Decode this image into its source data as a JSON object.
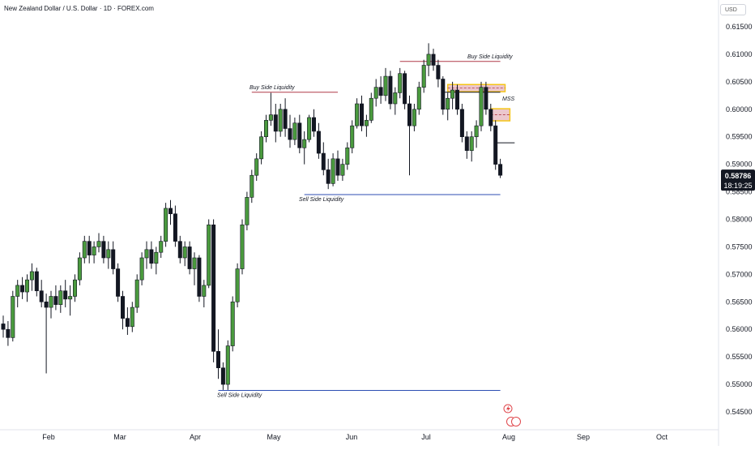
{
  "title": "New Zealand Dollar / U.S. Dollar · 1D · FOREX.com",
  "currency": "USD",
  "last_price": "0.58786",
  "countdown": "18:19:25",
  "colors": {
    "up": "#4a9a3e",
    "down": "#131722",
    "liquidity_high": "#b03a48",
    "liquidity_low": "#2c4db3",
    "zone_border": "#f5c518",
    "zone_fill": "#e7b9c1"
  },
  "annotations": {
    "bsl_high": "Buy Side Liquidity",
    "bsl_mid": "Buy Side Liquidity",
    "ssl_mid": "Sell Side Liquidity",
    "ssl_low": "Sell Side Liquidity",
    "mss": "MSS"
  },
  "chart_data": {
    "type": "candlestick",
    "title": "New Zealand Dollar / U.S. Dollar · 1D · FOREX.com",
    "y_ticks": [
      "0.61500",
      "0.61000",
      "0.60500",
      "0.60000",
      "0.59500",
      "0.59000",
      "0.58500",
      "0.58000",
      "0.57500",
      "0.57000",
      "0.56500",
      "0.56000",
      "0.55500",
      "0.55000",
      "0.54500"
    ],
    "ylim": [
      0.5438,
      0.6165
    ],
    "x_ticks": [
      "Feb",
      "Mar",
      "Apr",
      "May",
      "Jun",
      "Jul",
      "Aug",
      "Sep",
      "Oct"
    ],
    "candles": [
      [
        0.561,
        0.5625,
        0.5585,
        0.56
      ],
      [
        0.56,
        0.5615,
        0.557,
        0.5585
      ],
      [
        0.5585,
        0.567,
        0.5578,
        0.566
      ],
      [
        0.566,
        0.569,
        0.564,
        0.568
      ],
      [
        0.568,
        0.5695,
        0.5655,
        0.5668
      ],
      [
        0.5668,
        0.57,
        0.565,
        0.569
      ],
      [
        0.569,
        0.572,
        0.567,
        0.5705
      ],
      [
        0.5705,
        0.5712,
        0.566,
        0.567
      ],
      [
        0.567,
        0.569,
        0.564,
        0.565
      ],
      [
        0.565,
        0.5665,
        0.552,
        0.564
      ],
      [
        0.564,
        0.567,
        0.562,
        0.566
      ],
      [
        0.566,
        0.568,
        0.5635,
        0.5645
      ],
      [
        0.5645,
        0.568,
        0.563,
        0.567
      ],
      [
        0.567,
        0.569,
        0.564,
        0.5655
      ],
      [
        0.5655,
        0.568,
        0.5625,
        0.566
      ],
      [
        0.566,
        0.57,
        0.565,
        0.569
      ],
      [
        0.569,
        0.574,
        0.568,
        0.573
      ],
      [
        0.573,
        0.577,
        0.572,
        0.576
      ],
      [
        0.576,
        0.577,
        0.572,
        0.5735
      ],
      [
        0.5735,
        0.576,
        0.572,
        0.575
      ],
      [
        0.575,
        0.5775,
        0.574,
        0.576
      ],
      [
        0.576,
        0.577,
        0.572,
        0.573
      ],
      [
        0.573,
        0.576,
        0.571,
        0.5745
      ],
      [
        0.5745,
        0.576,
        0.57,
        0.571
      ],
      [
        0.571,
        0.572,
        0.565,
        0.566
      ],
      [
        0.566,
        0.567,
        0.56,
        0.562
      ],
      [
        0.562,
        0.564,
        0.559,
        0.5605
      ],
      [
        0.5605,
        0.565,
        0.5595,
        0.564
      ],
      [
        0.564,
        0.57,
        0.563,
        0.569
      ],
      [
        0.569,
        0.574,
        0.568,
        0.573
      ],
      [
        0.573,
        0.576,
        0.571,
        0.5745
      ],
      [
        0.5745,
        0.576,
        0.571,
        0.572
      ],
      [
        0.572,
        0.575,
        0.57,
        0.574
      ],
      [
        0.574,
        0.577,
        0.573,
        0.576
      ],
      [
        0.576,
        0.583,
        0.575,
        0.582
      ],
      [
        0.582,
        0.5835,
        0.579,
        0.581
      ],
      [
        0.581,
        0.5825,
        0.575,
        0.576
      ],
      [
        0.576,
        0.577,
        0.572,
        0.573
      ],
      [
        0.573,
        0.576,
        0.5715,
        0.575
      ],
      [
        0.575,
        0.576,
        0.57,
        0.571
      ],
      [
        0.571,
        0.574,
        0.568,
        0.573
      ],
      [
        0.573,
        0.5735,
        0.565,
        0.566
      ],
      [
        0.566,
        0.569,
        0.564,
        0.568
      ],
      [
        0.568,
        0.58,
        0.5675,
        0.579
      ],
      [
        0.579,
        0.58,
        0.554,
        0.556
      ],
      [
        0.556,
        0.56,
        0.551,
        0.553
      ],
      [
        0.553,
        0.554,
        0.549,
        0.55
      ],
      [
        0.55,
        0.558,
        0.549,
        0.557
      ],
      [
        0.557,
        0.566,
        0.556,
        0.565
      ],
      [
        0.565,
        0.572,
        0.564,
        0.571
      ],
      [
        0.571,
        0.58,
        0.57,
        0.579
      ],
      [
        0.579,
        0.585,
        0.578,
        0.584
      ],
      [
        0.584,
        0.589,
        0.583,
        0.588
      ],
      [
        0.588,
        0.592,
        0.587,
        0.591
      ],
      [
        0.591,
        0.596,
        0.59,
        0.595
      ],
      [
        0.595,
        0.599,
        0.594,
        0.598
      ],
      [
        0.598,
        0.603,
        0.597,
        0.599
      ],
      [
        0.599,
        0.601,
        0.594,
        0.596
      ],
      [
        0.596,
        0.601,
        0.595,
        0.6
      ],
      [
        0.6,
        0.602,
        0.595,
        0.5965
      ],
      [
        0.5965,
        0.599,
        0.593,
        0.5945
      ],
      [
        0.5945,
        0.5985,
        0.5935,
        0.5975
      ],
      [
        0.5975,
        0.599,
        0.592,
        0.593
      ],
      [
        0.593,
        0.596,
        0.59,
        0.5945
      ],
      [
        0.5945,
        0.599,
        0.594,
        0.5985
      ],
      [
        0.5985,
        0.6,
        0.595,
        0.596
      ],
      [
        0.596,
        0.5975,
        0.591,
        0.592
      ],
      [
        0.592,
        0.594,
        0.588,
        0.589
      ],
      [
        0.589,
        0.591,
        0.5855,
        0.5865
      ],
      [
        0.5865,
        0.592,
        0.586,
        0.591
      ],
      [
        0.591,
        0.5925,
        0.587,
        0.588
      ],
      [
        0.588,
        0.591,
        0.587,
        0.59
      ],
      [
        0.59,
        0.594,
        0.589,
        0.593
      ],
      [
        0.593,
        0.598,
        0.592,
        0.597
      ],
      [
        0.597,
        0.602,
        0.5965,
        0.601
      ],
      [
        0.601,
        0.6025,
        0.596,
        0.597
      ],
      [
        0.597,
        0.599,
        0.595,
        0.598
      ],
      [
        0.598,
        0.603,
        0.5975,
        0.602
      ],
      [
        0.602,
        0.6055,
        0.6005,
        0.604
      ],
      [
        0.604,
        0.606,
        0.601,
        0.6025
      ],
      [
        0.6025,
        0.6075,
        0.6015,
        0.606
      ],
      [
        0.606,
        0.607,
        0.6,
        0.601
      ],
      [
        0.601,
        0.604,
        0.599,
        0.603
      ],
      [
        0.603,
        0.6075,
        0.602,
        0.6065
      ],
      [
        0.6065,
        0.607,
        0.6,
        0.601
      ],
      [
        0.601,
        0.6025,
        0.588,
        0.597
      ],
      [
        0.597,
        0.601,
        0.596,
        0.6
      ],
      [
        0.6,
        0.605,
        0.599,
        0.604
      ],
      [
        0.604,
        0.609,
        0.603,
        0.608
      ],
      [
        0.608,
        0.612,
        0.606,
        0.61
      ],
      [
        0.61,
        0.611,
        0.607,
        0.608
      ],
      [
        0.608,
        0.609,
        0.604,
        0.6055
      ],
      [
        0.6055,
        0.606,
        0.599,
        0.6
      ],
      [
        0.6,
        0.603,
        0.598,
        0.602
      ],
      [
        0.602,
        0.605,
        0.6,
        0.6035
      ],
      [
        0.6035,
        0.6045,
        0.599,
        0.6
      ],
      [
        0.6,
        0.601,
        0.594,
        0.595
      ],
      [
        0.595,
        0.596,
        0.591,
        0.5925
      ],
      [
        0.5925,
        0.596,
        0.5905,
        0.595
      ],
      [
        0.595,
        0.598,
        0.593,
        0.597
      ],
      [
        0.597,
        0.605,
        0.596,
        0.604
      ],
      [
        0.604,
        0.605,
        0.599,
        0.6
      ],
      [
        0.6,
        0.601,
        0.596,
        0.597
      ],
      [
        0.597,
        0.598,
        0.589,
        0.59
      ],
      [
        0.59,
        0.591,
        0.5875,
        0.588
      ]
    ],
    "levels": [
      {
        "name": "buy-side-liquidity-high",
        "price": 0.6087,
        "from": 83,
        "to": 104,
        "label": "Buy Side Liquidity"
      },
      {
        "name": "buy-side-liquidity-mid",
        "price": 0.6031,
        "from": 52,
        "to": 70,
        "label": "Buy Side Liquidity"
      },
      {
        "name": "sell-side-liquidity-mid",
        "price": 0.5845,
        "from": 63,
        "to": 104,
        "label": "Sell Side Liquidity"
      },
      {
        "name": "sell-side-liquidity-low",
        "price": 0.5489,
        "from": 45,
        "to": 104,
        "label": "Sell Side Liquidity"
      },
      {
        "name": "mss-line",
        "price": 0.6031,
        "from": 92,
        "to": 104,
        "label": "MSS"
      }
    ],
    "zones": [
      {
        "name": "premium-zone-upper",
        "top": 0.6045,
        "bottom": 0.6032,
        "from": 93,
        "to": 105
      },
      {
        "name": "premium-zone-lower",
        "top": 0.6001,
        "bottom": 0.5979,
        "from": 102,
        "to": 106
      }
    ]
  }
}
